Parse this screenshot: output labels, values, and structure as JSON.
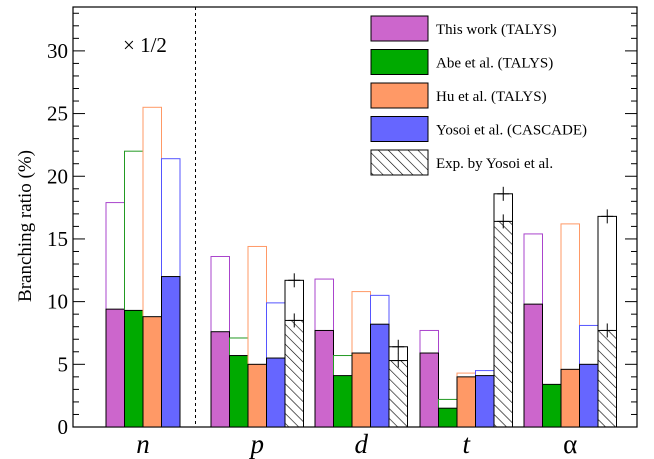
{
  "chart_data": {
    "type": "bar",
    "ylabel": "Branching ratio (%)",
    "ylim": [
      0,
      33.5
    ],
    "yticks": [
      0,
      5,
      10,
      15,
      20,
      25,
      30
    ],
    "categories": [
      "n",
      "p",
      "d",
      "t",
      "α"
    ],
    "annotation": "× 1/2",
    "legend_position": "top-right",
    "series": [
      {
        "name": "This work (TALYS)",
        "color": "#cc66cc",
        "outline": "#aa44cc",
        "values": [
          9.4,
          7.6,
          7.7,
          5.9,
          9.8
        ],
        "open_values": [
          17.9,
          13.6,
          11.8,
          7.7,
          15.4
        ]
      },
      {
        "name": "Abe et al. (TALYS)",
        "color": "#00aa00",
        "outline": "#229922",
        "values": [
          9.3,
          5.7,
          4.1,
          1.5,
          3.4
        ],
        "open_values": [
          22.0,
          7.1,
          5.7,
          2.2,
          null
        ]
      },
      {
        "name": "Hu et al. (TALYS)",
        "color": "#ff9966",
        "outline": "#ff9966",
        "values": [
          8.8,
          5.0,
          5.9,
          4.0,
          4.6
        ],
        "open_values": [
          25.5,
          14.4,
          10.8,
          4.3,
          16.2
        ]
      },
      {
        "name": "Yosoi et al. (CASCADE)",
        "color": "#6666ff",
        "outline": "#5555ff",
        "values": [
          12.0,
          5.5,
          8.2,
          4.1,
          5.0
        ],
        "open_values": [
          21.4,
          9.9,
          10.5,
          4.5,
          8.1
        ]
      },
      {
        "name": "Exp. by Yosoi et al.",
        "pattern": "hatched",
        "color": "#000000",
        "values": [
          null,
          8.5,
          5.3,
          16.4,
          7.7
        ],
        "open_values": [
          null,
          11.7,
          6.4,
          18.6,
          16.8
        ]
      }
    ]
  }
}
